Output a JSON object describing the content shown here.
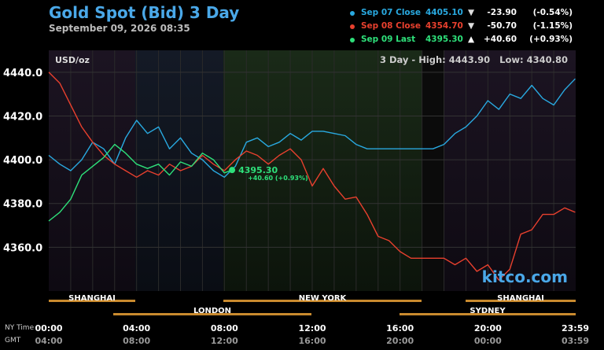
{
  "header": {
    "title": "Gold Spot (Bid) 3 Day",
    "subtitle": "September 09, 2026 08:35"
  },
  "legend": [
    {
      "label": "Sep 07 Close",
      "value": "4405.10",
      "arrow": "▼",
      "change": "-23.90",
      "pct": "(-0.54%)",
      "color": "#29a9e0"
    },
    {
      "label": "Sep 08 Close",
      "value": "4354.70",
      "arrow": "▼",
      "change": "-50.70",
      "pct": "(-1.15%)",
      "color": "#e8402e"
    },
    {
      "label": "Sep 09 Last",
      "value": "4395.30",
      "arrow": "▲",
      "change": "+40.60",
      "pct": "(+0.93%)",
      "color": "#2ee07a"
    }
  ],
  "plot": {
    "unit": "USD/oz",
    "range_text": "3 Day - High: 4443.90   Low: 4340.80",
    "watermark": "kitco.com",
    "last_label": "4395.30",
    "last_change": "+40.60 (+0.93%)"
  },
  "sessions": {
    "top": [
      "SHANGHAI",
      "NEW YORK",
      "SHANGHAI"
    ],
    "bottom": [
      "LONDON",
      "SYDNEY"
    ]
  },
  "xaxis": {
    "row1_label": "NY Time",
    "row2_label": "GMT",
    "ny": [
      "00:00",
      "04:00",
      "08:00",
      "12:00",
      "16:00",
      "20:00",
      "23:59"
    ],
    "gmt": [
      "04:00",
      "08:00",
      "12:00",
      "16:00",
      "20:00",
      "00:00",
      "03:59"
    ]
  },
  "chart_data": {
    "type": "line",
    "title": "Gold Spot (Bid) 3 Day",
    "ylabel": "USD/oz",
    "xlabel": "NY Time",
    "x_range_hours": [
      0,
      24
    ],
    "ylim": [
      4340,
      4450
    ],
    "yticks": [
      4360.0,
      4380.0,
      4400.0,
      4420.0,
      4440.0
    ],
    "series": [
      {
        "name": "Sep 07 Close",
        "color": "#29a9e0",
        "x": [
          0,
          0.5,
          1,
          1.5,
          2,
          2.5,
          3,
          3.5,
          4,
          4.5,
          5,
          5.5,
          6,
          6.5,
          7,
          7.5,
          8,
          8.5,
          9,
          9.5,
          10,
          10.5,
          11,
          11.5,
          12,
          12.5,
          13,
          13.5,
          14,
          14.5,
          15,
          15.5,
          16,
          16.5,
          17,
          17.5,
          18,
          18.5,
          19,
          19.5,
          20,
          20.5,
          21,
          21.5,
          22,
          22.5,
          23,
          23.5,
          23.98
        ],
        "y": [
          4402,
          4398,
          4395,
          4400,
          4408,
          4405,
          4398,
          4410,
          4418,
          4412,
          4415,
          4405,
          4410,
          4403,
          4400,
          4395,
          4392,
          4397,
          4408,
          4410,
          4406,
          4408,
          4412,
          4409,
          4413,
          4413,
          4412,
          4411,
          4407,
          4405,
          4405,
          4405,
          4405,
          4405,
          4405,
          4405,
          4407,
          4412,
          4415,
          4420,
          4427,
          4423,
          4430,
          4428,
          4434,
          4428,
          4425,
          4432,
          4437
        ]
      },
      {
        "name": "Sep 08 Close",
        "color": "#e8402e",
        "x": [
          0,
          0.5,
          1,
          1.5,
          2,
          2.5,
          3,
          3.5,
          4,
          4.5,
          5,
          5.5,
          6,
          6.5,
          7,
          7.5,
          8,
          8.5,
          9,
          9.5,
          10,
          10.5,
          11,
          11.5,
          12,
          12.5,
          13,
          13.5,
          14,
          14.5,
          15,
          15.5,
          16,
          16.5,
          17,
          17.5,
          18,
          18.5,
          19,
          19.5,
          20,
          20.5,
          21,
          21.5,
          22,
          22.5,
          23,
          23.5,
          23.98
        ],
        "y": [
          4440,
          4435,
          4425,
          4415,
          4408,
          4402,
          4398,
          4395,
          4392,
          4395,
          4393,
          4398,
          4395,
          4397,
          4402,
          4398,
          4395,
          4400,
          4404,
          4402,
          4398,
          4402,
          4405,
          4400,
          4388,
          4396,
          4388,
          4382,
          4383,
          4375,
          4365,
          4363,
          4358,
          4355,
          4355,
          4355,
          4355,
          4352,
          4355,
          4349,
          4352,
          4345,
          4350,
          4366,
          4368,
          4375,
          4375,
          4378,
          4376
        ]
      },
      {
        "name": "Sep 09 Last",
        "color": "#2ee07a",
        "x": [
          0,
          0.5,
          1,
          1.5,
          2,
          2.5,
          3,
          3.5,
          4,
          4.5,
          5,
          5.5,
          6,
          6.5,
          7,
          7.5,
          8,
          8.35
        ],
        "y": [
          4372,
          4376,
          4382,
          4393,
          4397,
          4401,
          4407,
          4403,
          4398,
          4396,
          4398,
          4393,
          4399,
          4397,
          4403,
          4400,
          4394,
          4395.3
        ]
      }
    ]
  }
}
